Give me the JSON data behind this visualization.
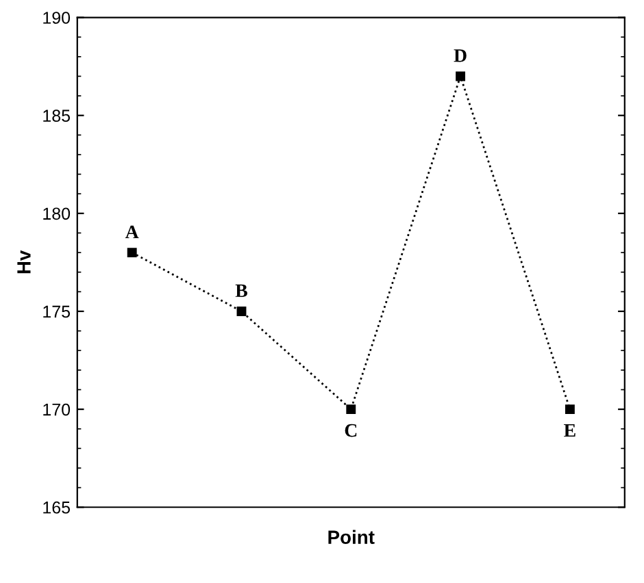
{
  "chart_data": {
    "type": "line",
    "xlabel": "Point",
    "ylabel": "Hv",
    "categories": [
      "A",
      "B",
      "C",
      "D",
      "E"
    ],
    "series": [
      {
        "color": "#000000",
        "values": [
          178,
          175,
          170,
          187,
          170
        ]
      }
    ],
    "ylim": [
      165,
      190
    ],
    "yticks": [
      165,
      170,
      175,
      180,
      185,
      190
    ],
    "marker": "square",
    "line_style": "dotted",
    "grid": false,
    "tick_labels": "y"
  }
}
